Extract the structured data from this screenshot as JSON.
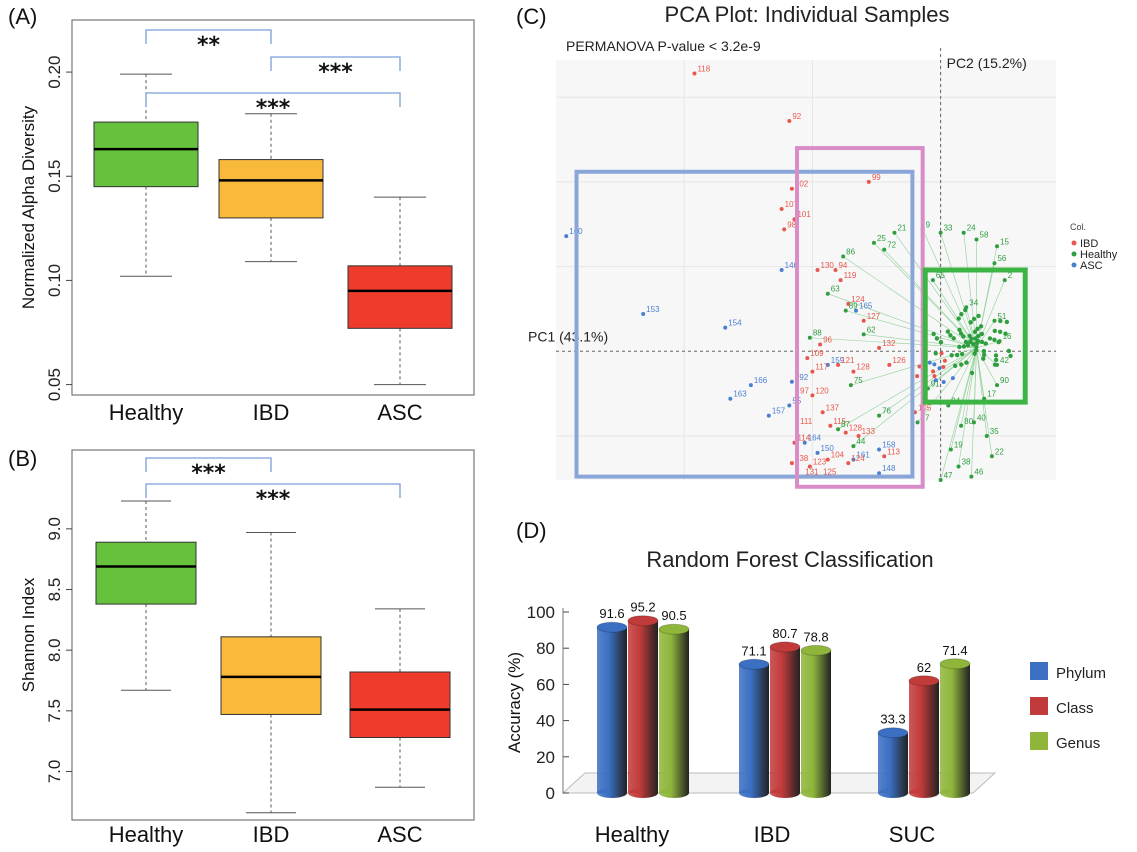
{
  "chart_data": [
    {
      "panel": "(A)",
      "type": "box",
      "ylabel": "Normalized  Alpha Diversity",
      "categories": [
        "Healthy",
        "IBD",
        "ASC"
      ],
      "ylim": [
        0.045,
        0.225
      ],
      "yticks": [
        0.05,
        0.1,
        0.15,
        0.2
      ],
      "ytick_labels": [
        "0.05",
        "0.10",
        "0.15",
        "0.20"
      ],
      "boxes": [
        {
          "min": 0.102,
          "q1": 0.145,
          "median": 0.163,
          "q3": 0.176,
          "max": 0.199,
          "color": "#66c23c"
        },
        {
          "min": 0.109,
          "q1": 0.13,
          "median": 0.148,
          "q3": 0.158,
          "max": 0.18,
          "color": "#f9b93b"
        },
        {
          "min": 0.05,
          "q1": 0.077,
          "median": 0.095,
          "q3": 0.107,
          "max": 0.14,
          "color": "#ee3b2b"
        }
      ],
      "significance": [
        {
          "from": 0,
          "to": 1,
          "label": "**"
        },
        {
          "from": 1,
          "to": 2,
          "label": "***"
        },
        {
          "from": 0,
          "to": 2,
          "label": "***"
        }
      ]
    },
    {
      "panel": "(B)",
      "type": "box",
      "ylabel": "Shannon Index",
      "categories": [
        "Healthy",
        "IBD",
        "ASC"
      ],
      "ylim": [
        6.6,
        9.65
      ],
      "yticks": [
        7.0,
        7.5,
        8.0,
        8.5,
        9.0
      ],
      "ytick_labels": [
        "7.0",
        "7.5",
        "8.0",
        "8.5",
        "9.0"
      ],
      "boxes": [
        {
          "min": 7.67,
          "q1": 8.38,
          "median": 8.69,
          "q3": 8.89,
          "max": 9.23,
          "color": "#66c23c"
        },
        {
          "min": 6.66,
          "q1": 7.47,
          "median": 7.78,
          "q3": 8.11,
          "max": 8.97,
          "color": "#f9b93b"
        },
        {
          "min": 6.87,
          "q1": 7.28,
          "median": 7.51,
          "q3": 7.82,
          "max": 8.34,
          "color": "#ee3b2b"
        }
      ],
      "significance": [
        {
          "from": 0,
          "to": 1,
          "label": "***"
        },
        {
          "from": 0,
          "to": 2,
          "label": "***"
        }
      ]
    },
    {
      "panel": "(C)",
      "type": "scatter",
      "title": "PCA Plot: Individual Samples",
      "subtitle": "PERMANOVA P-value < 3.2e-9",
      "xlabel": "PC1 (43.1%)",
      "ylabel": "PC2 (15.2%)",
      "xlim": [
        -1.5,
        0.45
      ],
      "ylim": [
        -0.38,
        0.86
      ],
      "legend_title": "Col.",
      "legend": [
        {
          "name": "IBD",
          "color": "#e8574d"
        },
        {
          "name": "Healthy",
          "color": "#2e9e3f"
        },
        {
          "name": "ASC",
          "color": "#4a7fd0"
        }
      ],
      "groups": [
        {
          "name": "ASC",
          "color": "#4a7fd0",
          "points": [
            [
              -1.46,
              0.34,
              "160"
            ],
            [
              -1.16,
              0.11,
              "153"
            ],
            [
              -0.84,
              0.07,
              "154"
            ],
            [
              -0.62,
              0.24,
              "146"
            ],
            [
              -0.58,
              -0.09,
              "192"
            ],
            [
              -0.74,
              -0.1,
              "166"
            ],
            [
              -0.82,
              -0.14,
              "163"
            ],
            [
              -0.59,
              -0.16,
              "55"
            ],
            [
              -0.67,
              -0.19,
              "157"
            ],
            [
              -0.53,
              -0.27,
              "164"
            ],
            [
              -0.48,
              -0.3,
              "150"
            ],
            [
              -0.34,
              -0.32,
              "161"
            ],
            [
              -0.24,
              -0.36,
              "148"
            ],
            [
              -0.33,
              0.12,
              "165"
            ],
            [
              -0.24,
              -0.29,
              "158"
            ],
            [
              -0.44,
              -0.04,
              "159"
            ]
          ]
        },
        {
          "name": "IBD",
          "color": "#e8574d",
          "points": [
            [
              -0.96,
              0.82,
              "118"
            ],
            [
              -0.59,
              0.68,
              "92"
            ],
            [
              -0.58,
              0.48,
              "102"
            ],
            [
              -0.62,
              0.42,
              "107"
            ],
            [
              -0.57,
              0.39,
              "101"
            ],
            [
              -0.61,
              0.36,
              "98"
            ],
            [
              -0.28,
              0.5,
              "99"
            ],
            [
              -0.48,
              0.24,
              "130"
            ],
            [
              -0.41,
              0.24,
              "94"
            ],
            [
              -0.39,
              0.21,
              "119"
            ],
            [
              -0.36,
              0.14,
              "124"
            ],
            [
              -0.3,
              0.09,
              "127"
            ],
            [
              -0.47,
              0.02,
              "96"
            ],
            [
              -0.52,
              -0.02,
              "109"
            ],
            [
              -0.5,
              -0.06,
              "117"
            ],
            [
              -0.4,
              -0.04,
              "121"
            ],
            [
              -0.34,
              -0.06,
              "128"
            ],
            [
              -0.56,
              -0.13,
              "97"
            ],
            [
              -0.5,
              -0.13,
              "120"
            ],
            [
              -0.46,
              -0.18,
              "137"
            ],
            [
              -0.56,
              -0.22,
              "111"
            ],
            [
              -0.57,
              -0.27,
              "114"
            ],
            [
              -0.43,
              -0.22,
              "115"
            ],
            [
              -0.37,
              -0.24,
              "128"
            ],
            [
              -0.32,
              -0.25,
              "133"
            ],
            [
              -0.58,
              -0.33,
              "138"
            ],
            [
              -0.51,
              -0.34,
              "123"
            ],
            [
              -0.54,
              -0.37,
              "131"
            ],
            [
              -0.47,
              -0.37,
              "125"
            ],
            [
              -0.44,
              -0.32,
              "104"
            ],
            [
              -0.36,
              -0.33,
              "124"
            ],
            [
              -0.22,
              -0.31,
              "113"
            ],
            [
              -0.1,
              -0.18,
              "105"
            ],
            [
              -0.2,
              -0.04,
              "126"
            ],
            [
              -0.24,
              0.01,
              "132"
            ]
          ]
        },
        {
          "name": "Healthy",
          "color": "#2e9e3f",
          "points": [
            [
              -0.26,
              0.32,
              "25"
            ],
            [
              -0.18,
              0.35,
              "21"
            ],
            [
              -0.07,
              0.36,
              "9"
            ],
            [
              0.0,
              0.35,
              "33"
            ],
            [
              0.09,
              0.35,
              "24"
            ],
            [
              0.14,
              0.33,
              "58"
            ],
            [
              0.22,
              0.31,
              "15"
            ],
            [
              0.21,
              0.26,
              "56"
            ],
            [
              0.25,
              0.21,
              "2"
            ],
            [
              0.21,
              0.09,
              "51"
            ],
            [
              0.23,
              0.03,
              "16"
            ],
            [
              0.22,
              -0.04,
              "42"
            ],
            [
              0.22,
              -0.1,
              "90"
            ],
            [
              0.17,
              -0.14,
              "17"
            ],
            [
              0.13,
              -0.21,
              "40"
            ],
            [
              0.18,
              -0.25,
              "35"
            ],
            [
              0.2,
              -0.31,
              "22"
            ],
            [
              0.12,
              -0.37,
              "46"
            ],
            [
              0.07,
              -0.34,
              "38"
            ],
            [
              0.04,
              -0.29,
              "19"
            ],
            [
              0.0,
              -0.38,
              "47"
            ],
            [
              -0.44,
              0.17,
              "63"
            ],
            [
              -0.37,
              0.12,
              "89"
            ],
            [
              -0.3,
              0.05,
              "62"
            ],
            [
              -0.51,
              0.04,
              "88"
            ],
            [
              -0.35,
              -0.1,
              "75"
            ],
            [
              -0.4,
              -0.23,
              "87"
            ],
            [
              -0.34,
              -0.28,
              "44"
            ],
            [
              -0.24,
              -0.19,
              "76"
            ],
            [
              -0.05,
              -0.11,
              "91"
            ],
            [
              -0.03,
              0.21,
              "65"
            ],
            [
              0.1,
              0.13,
              "34"
            ],
            [
              0.03,
              -0.16,
              "84"
            ],
            [
              0.08,
              -0.22,
              "80"
            ],
            [
              -0.09,
              -0.21,
              "27"
            ],
            [
              -0.22,
              0.3,
              "72"
            ],
            [
              -0.38,
              0.28,
              "86"
            ]
          ]
        }
      ],
      "boxes": [
        {
          "color": "#8aa6d8",
          "x1": -1.42,
          "y1": -0.37,
          "x2": -0.11,
          "y2": 0.53
        },
        {
          "color": "#d98cc7",
          "x1": -0.56,
          "y1": -0.4,
          "x2": -0.07,
          "y2": 0.6
        },
        {
          "color": "#3db545",
          "x1": -0.06,
          "y1": -0.15,
          "x2": 0.33,
          "y2": 0.24
        }
      ]
    },
    {
      "panel": "(D)",
      "type": "bar",
      "title": "Random Forest Classification",
      "ylabel": "Accuracy (%)",
      "categories": [
        "Healthy",
        "IBD",
        "SUC"
      ],
      "ylim": [
        0,
        100
      ],
      "yticks": [
        0,
        20,
        40,
        60,
        80,
        100
      ],
      "series": [
        {
          "name": "Phylum",
          "color": "#3b6fc2",
          "values": [
            91.6,
            71.1,
            33.3
          ]
        },
        {
          "name": "Class",
          "color": "#c23b3b",
          "values": [
            95.2,
            80.7,
            62
          ]
        },
        {
          "name": "Genus",
          "color": "#8fb63b",
          "values": [
            90.5,
            78.8,
            71.4
          ]
        }
      ],
      "value_labels": [
        [
          "91.6",
          "71.1",
          "33.3"
        ],
        [
          "95.2",
          "80.7",
          "62"
        ],
        [
          "90.5",
          "78.8",
          "71.4"
        ]
      ]
    }
  ]
}
